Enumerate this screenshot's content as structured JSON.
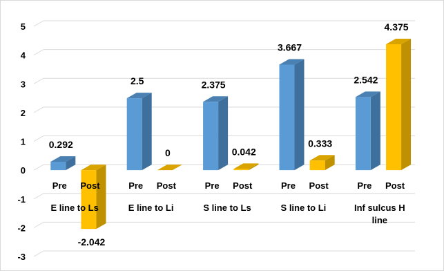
{
  "chart_data": {
    "type": "bar",
    "ylim": [
      -3,
      5
    ],
    "yticks": [
      -3,
      -2,
      -1,
      0,
      1,
      2,
      3,
      4,
      5
    ],
    "grid": true,
    "groups": [
      {
        "label": "E line to Ls",
        "bars": [
          {
            "label": "Pre",
            "value": 0.292,
            "value_label": "0.292"
          },
          {
            "label": "Post",
            "value": -2.042,
            "value_label": "-2.042"
          }
        ]
      },
      {
        "label": "E line to Li",
        "bars": [
          {
            "label": "Pre",
            "value": 2.5,
            "value_label": "2.5"
          },
          {
            "label": "Post",
            "value": 0,
            "value_label": "0"
          }
        ]
      },
      {
        "label": "S line to Ls",
        "bars": [
          {
            "label": "Pre",
            "value": 2.375,
            "value_label": "2.375"
          },
          {
            "label": "Post",
            "value": 0.042,
            "value_label": "0.042"
          }
        ]
      },
      {
        "label": "S line to Li",
        "bars": [
          {
            "label": "Pre",
            "value": 3.667,
            "value_label": "3.667"
          },
          {
            "label": "Post",
            "value": 0.333,
            "value_label": "0.333"
          }
        ]
      },
      {
        "label": "Inf sulcus H line",
        "bars": [
          {
            "label": "Pre",
            "value": 2.542,
            "value_label": "2.542"
          },
          {
            "label": "Post",
            "value": 4.375,
            "value_label": "4.375"
          }
        ]
      }
    ],
    "colors": {
      "Pre": {
        "front": "#5b9bd5",
        "side": "#3f6f9c",
        "top": "#4a80b2"
      },
      "Post": {
        "front": "#ffc000",
        "side": "#bf9000",
        "top": "#d9a400"
      },
      "grid": "#d9d9d9"
    }
  }
}
